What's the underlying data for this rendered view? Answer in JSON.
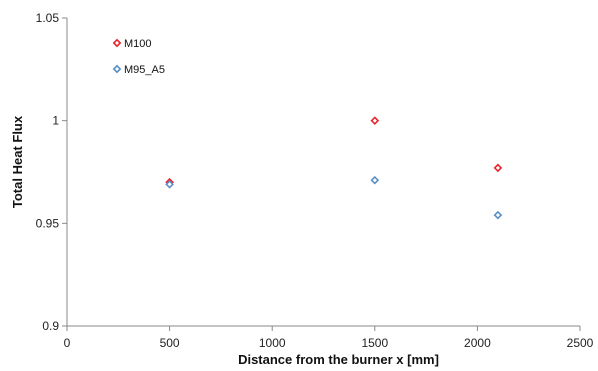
{
  "chart_data": {
    "type": "scatter",
    "xlabel": "Distance from the burner x [mm]",
    "ylabel": "Total Heat Flux",
    "xlim": [
      0,
      2500
    ],
    "ylim": [
      0.9,
      1.05
    ],
    "x_ticks": [
      0,
      500,
      1000,
      1500,
      2000,
      2500
    ],
    "y_ticks": [
      0.9,
      0.95,
      1,
      1.05
    ],
    "x_tick_labels": [
      "0",
      "500",
      "1000",
      "1500",
      "2000",
      "2500"
    ],
    "y_tick_labels": [
      "0.9",
      "0.95",
      "1",
      "1.05"
    ],
    "grid": false,
    "legend_position": "top-left",
    "marker": "diamond",
    "series": [
      {
        "name": "M100",
        "color": "#e8262b",
        "x": [
          500,
          1500,
          2100
        ],
        "y": [
          0.97,
          1.0,
          0.977
        ]
      },
      {
        "name": "M95_A5",
        "color": "#5b8fc7",
        "x": [
          500,
          1500,
          2100
        ],
        "y": [
          0.969,
          0.971,
          0.954
        ]
      }
    ]
  }
}
